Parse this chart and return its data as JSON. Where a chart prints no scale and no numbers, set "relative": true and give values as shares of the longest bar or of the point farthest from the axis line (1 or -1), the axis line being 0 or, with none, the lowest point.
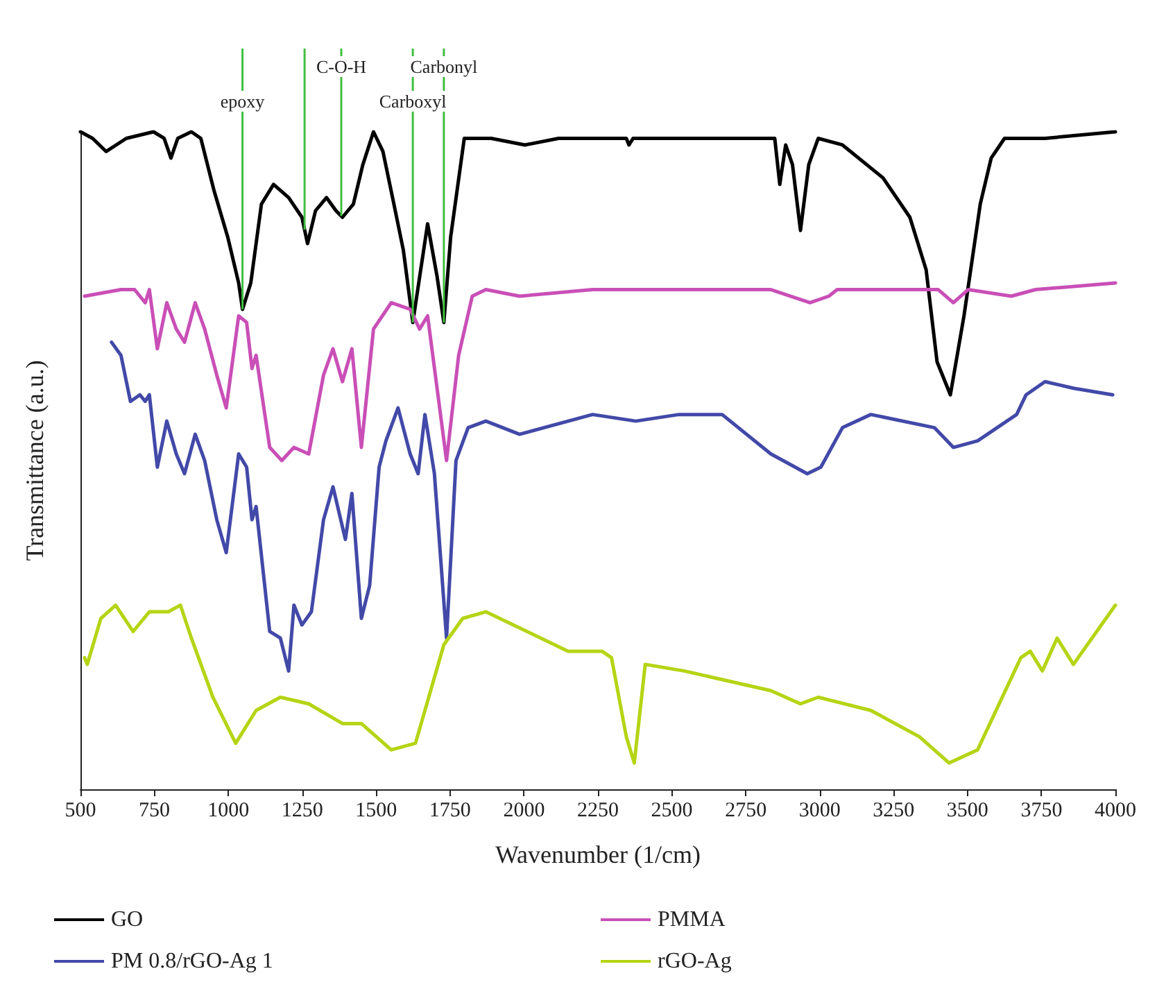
{
  "chart_data": {
    "type": "line",
    "relative": true,
    "xlabel": "Wavenumber (1/cm)",
    "ylabel": "Transmittance (a.u.)",
    "xlim": [
      500,
      4000
    ],
    "xticks": [
      500,
      750,
      1000,
      1250,
      1500,
      1750,
      2000,
      2250,
      2500,
      2750,
      3000,
      3250,
      3500,
      3750,
      4000
    ],
    "grid": false,
    "legend": "bottom",
    "marker": "none",
    "line_style": "solid",
    "ref_lines": [
      {
        "axis": "x",
        "value": 1048,
        "label": "epoxy",
        "color": "#3fbf3f"
      },
      {
        "axis": "x",
        "value": 1258,
        "color": "#3fbf3f"
      },
      {
        "axis": "x",
        "value": 1382,
        "label": "C-O-H",
        "color": "#3fbf3f"
      },
      {
        "axis": "x",
        "value": 1624,
        "label": "Carboxyl",
        "color": "#3fbf3f"
      },
      {
        "axis": "x",
        "value": 1729,
        "label": "Carbonyl",
        "color": "#3fbf3f"
      }
    ],
    "series": [
      {
        "name": "GO",
        "color": "#000000",
        "x": [
          500,
          541,
          587,
          655,
          747,
          783,
          806,
          829,
          875,
          907,
          952,
          998,
          1035,
          1048,
          1076,
          1112,
          1153,
          1204,
          1249,
          1268,
          1295,
          1332,
          1364,
          1386,
          1423,
          1455,
          1491,
          1523,
          1560,
          1592,
          1624,
          1674,
          1706,
          1729,
          1752,
          1798,
          1889,
          2003,
          2117,
          2346,
          2355,
          2369,
          2392,
          2848,
          2865,
          2885,
          2908,
          2935,
          2963,
          2995,
          3077,
          3214,
          3305,
          3360,
          3397,
          3442,
          3488,
          3543,
          3580,
          3625,
          3762,
          4000
        ],
        "values": [
          1.0,
          0.99,
          0.97,
          0.99,
          1.0,
          0.99,
          0.96,
          0.99,
          1.0,
          0.99,
          0.91,
          0.84,
          0.77,
          0.73,
          0.77,
          0.89,
          0.92,
          0.9,
          0.87,
          0.83,
          0.88,
          0.9,
          0.88,
          0.87,
          0.89,
          0.95,
          1.0,
          0.97,
          0.89,
          0.82,
          0.71,
          0.86,
          0.78,
          0.71,
          0.84,
          0.99,
          0.99,
          0.98,
          0.99,
          0.99,
          0.98,
          0.99,
          0.99,
          0.99,
          0.92,
          0.98,
          0.95,
          0.85,
          0.95,
          0.99,
          0.98,
          0.93,
          0.87,
          0.79,
          0.65,
          0.6,
          0.72,
          0.89,
          0.96,
          0.99,
          0.99,
          1.0
        ]
      },
      {
        "name": "PMMA",
        "color": "#c94fb7",
        "x": [
          514,
          637,
          683,
          719,
          733,
          760,
          792,
          824,
          852,
          888,
          920,
          961,
          993,
          1035,
          1062,
          1080,
          1094,
          1140,
          1181,
          1222,
          1272,
          1322,
          1354,
          1386,
          1418,
          1450,
          1491,
          1551,
          1615,
          1647,
          1674,
          1738,
          1779,
          1825,
          1871,
          1985,
          2232,
          2478,
          2835,
          2967,
          3031,
          3059,
          3401,
          3452,
          3502,
          3648,
          3730,
          4000
        ],
        "values": [
          0.75,
          0.76,
          0.76,
          0.74,
          0.76,
          0.67,
          0.74,
          0.7,
          0.68,
          0.74,
          0.7,
          0.63,
          0.58,
          0.72,
          0.71,
          0.64,
          0.66,
          0.52,
          0.5,
          0.52,
          0.51,
          0.63,
          0.67,
          0.62,
          0.67,
          0.52,
          0.7,
          0.74,
          0.73,
          0.7,
          0.72,
          0.5,
          0.66,
          0.75,
          0.76,
          0.75,
          0.76,
          0.76,
          0.76,
          0.74,
          0.75,
          0.76,
          0.76,
          0.74,
          0.76,
          0.75,
          0.76,
          0.77
        ]
      },
      {
        "name": "PM 0.8/rGO-Ag 1",
        "color": "#4249a8",
        "x": [
          605,
          637,
          669,
          701,
          719,
          733,
          760,
          792,
          824,
          852,
          888,
          920,
          961,
          993,
          1035,
          1062,
          1080,
          1094,
          1140,
          1176,
          1204,
          1222,
          1249,
          1281,
          1322,
          1354,
          1396,
          1418,
          1450,
          1478,
          1510,
          1533,
          1574,
          1615,
          1642,
          1665,
          1697,
          1738,
          1770,
          1811,
          1871,
          1985,
          2232,
          2378,
          2524,
          2670,
          2835,
          2958,
          3004,
          3077,
          3173,
          3388,
          3452,
          3534,
          3666,
          3698,
          3762,
          3858,
          3991
        ],
        "values": [
          0.68,
          0.66,
          0.59,
          0.6,
          0.59,
          0.6,
          0.49,
          0.56,
          0.51,
          0.48,
          0.54,
          0.5,
          0.41,
          0.36,
          0.51,
          0.49,
          0.41,
          0.43,
          0.24,
          0.23,
          0.18,
          0.28,
          0.25,
          0.27,
          0.41,
          0.46,
          0.38,
          0.45,
          0.26,
          0.31,
          0.49,
          0.53,
          0.58,
          0.51,
          0.48,
          0.57,
          0.48,
          0.23,
          0.5,
          0.55,
          0.56,
          0.54,
          0.57,
          0.56,
          0.57,
          0.57,
          0.51,
          0.48,
          0.49,
          0.55,
          0.57,
          0.55,
          0.52,
          0.53,
          0.57,
          0.6,
          0.62,
          0.61,
          0.6
        ]
      },
      {
        "name": "rGO-Ag",
        "color": "#b5d414",
        "x": [
          514,
          523,
          569,
          619,
          678,
          733,
          797,
          838,
          875,
          948,
          1025,
          1094,
          1176,
          1272,
          1386,
          1450,
          1551,
          1633,
          1729,
          1793,
          1871,
          2149,
          2264,
          2296,
          2346,
          2373,
          2410,
          2542,
          2835,
          2935,
          2995,
          3173,
          3337,
          3438,
          3534,
          3680,
          3712,
          3753,
          3803,
          3858,
          4000
        ],
        "values": [
          0.2,
          0.19,
          0.26,
          0.28,
          0.24,
          0.27,
          0.27,
          0.28,
          0.23,
          0.14,
          0.07,
          0.12,
          0.14,
          0.13,
          0.1,
          0.1,
          0.06,
          0.07,
          0.22,
          0.26,
          0.27,
          0.21,
          0.21,
          0.2,
          0.08,
          0.04,
          0.19,
          0.18,
          0.15,
          0.13,
          0.14,
          0.12,
          0.08,
          0.04,
          0.06,
          0.2,
          0.21,
          0.18,
          0.23,
          0.19,
          0.28
        ]
      }
    ]
  }
}
